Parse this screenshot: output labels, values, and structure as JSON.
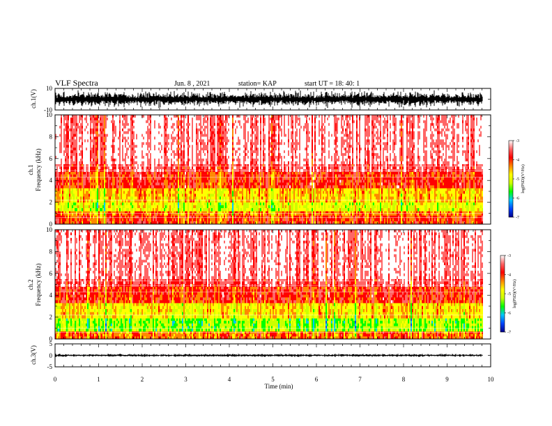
{
  "header": {
    "title": "VLF Spectra",
    "date": "Jun. 8 , 2021",
    "station": "station= KAP",
    "start": "start UT = 18: 40: 1"
  },
  "chart_data": [
    {
      "type": "line",
      "name": "ch1-waveform",
      "ylabel": "ch.1(V)",
      "ylim": [
        -10,
        10
      ],
      "y_ticks": [
        "10",
        "-10"
      ],
      "xlim": [
        0,
        10
      ],
      "trace_color": "#000000"
    },
    {
      "type": "heatmap",
      "name": "ch1-spectrogram",
      "ylabel": "ch.1\nFrequency (kHz)",
      "ylabel_lines": [
        "ch.1",
        "Frequency (kHz)"
      ],
      "ylim": [
        0,
        10
      ],
      "y_ticks": [
        "0",
        "2",
        "4",
        "6",
        "8",
        "10"
      ],
      "xlim": [
        0,
        10
      ],
      "data_xmax_min": 9.82,
      "colorbar": {
        "label": "log(PSD)(V²/Hz)",
        "range": [
          -7,
          -3
        ],
        "ticks": [
          "-3",
          "-4",
          "-5",
          "-6",
          "-7"
        ],
        "colors": [
          "#00008b",
          "#0044ff",
          "#00c8ff",
          "#00ff00",
          "#ccff00",
          "#ffff00",
          "#ff8800",
          "#ff0000",
          "#ff6666",
          "#ffffff"
        ]
      },
      "bands": [
        {
          "fmin": 0,
          "fmax": 0.8,
          "level": -4.0
        },
        {
          "fmin": 0.8,
          "fmax": 1.2,
          "level": -4.3
        },
        {
          "fmin": 1.2,
          "fmax": 2.0,
          "level": -5.0
        },
        {
          "fmin": 2.0,
          "fmax": 3.3,
          "level": -4.6
        },
        {
          "fmin": 3.3,
          "fmax": 4.8,
          "level": -3.9
        },
        {
          "fmin": 4.8,
          "fmax": 5.5,
          "level": -3.5
        },
        {
          "fmin": 5.5,
          "fmax": 10,
          "level": -3.2
        }
      ]
    },
    {
      "type": "heatmap",
      "name": "ch2-spectrogram",
      "ylabel": "ch.2\nFrequency (kHz)",
      "ylabel_lines": [
        "ch.2",
        "Frequency (kHz)"
      ],
      "ylim": [
        0,
        10
      ],
      "y_ticks": [
        "0",
        "2",
        "4",
        "6",
        "8",
        "10"
      ],
      "xlim": [
        0,
        10
      ],
      "data_xmax_min": 9.82,
      "colorbar": {
        "label": "log(PSD)(V²/Hz)",
        "range": [
          -7,
          -3
        ],
        "ticks": [
          "-3",
          "-4",
          "-5",
          "-6",
          "-7"
        ],
        "colors": [
          "#00008b",
          "#0044ff",
          "#00c8ff",
          "#00ff00",
          "#ccff00",
          "#ffff00",
          "#ff8800",
          "#ff0000",
          "#ff6666",
          "#ffffff"
        ]
      },
      "bands": [
        {
          "fmin": 0,
          "fmax": 0.7,
          "level": -4.2
        },
        {
          "fmin": 0.7,
          "fmax": 1.9,
          "level": -5.3
        },
        {
          "fmin": 1.9,
          "fmax": 3.3,
          "level": -4.7
        },
        {
          "fmin": 3.3,
          "fmax": 4.8,
          "level": -3.9
        },
        {
          "fmin": 4.8,
          "fmax": 5.5,
          "level": -3.5
        },
        {
          "fmin": 5.5,
          "fmax": 10,
          "level": -3.2
        }
      ]
    },
    {
      "type": "line",
      "name": "ch3-waveform",
      "ylabel": "ch.3(V)",
      "ylim": [
        -5,
        5
      ],
      "y_ticks": [
        "5",
        "0",
        "-5"
      ],
      "xlim": [
        0,
        10
      ],
      "x_ticks": [
        "0",
        "1",
        "2",
        "3",
        "4",
        "5",
        "6",
        "7",
        "8",
        "9",
        "10"
      ],
      "xlabel": "Time (min)",
      "trace_color": "#000000"
    }
  ]
}
